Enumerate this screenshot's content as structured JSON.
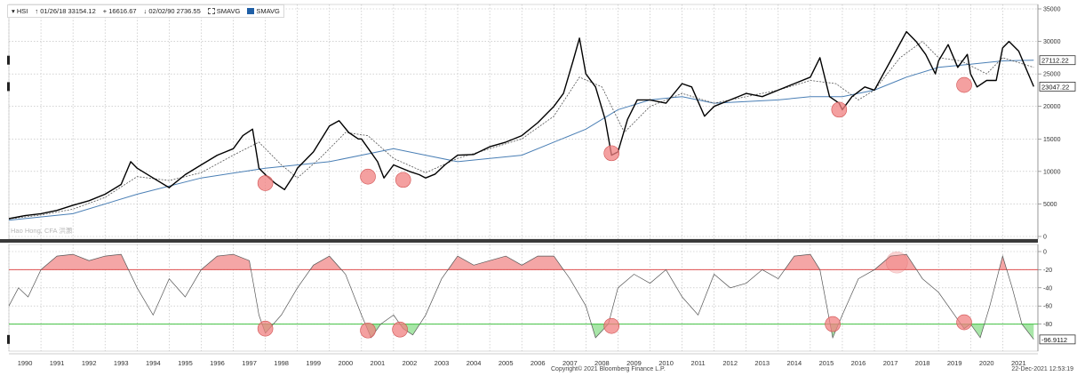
{
  "legend": {
    "ticker": "HSI",
    "high": "01/26/18 33154.12",
    "avg": "16616.67",
    "low": "02/02/90 2736.55",
    "sma1": "SMAVG",
    "sma2": "SMAVG"
  },
  "watermark": "Hao Hong, CFA 洪灝",
  "copyright": "Copyright© 2021 Bloomberg Finance L.P.",
  "timestamp": "22-Dec-2021 12:53:19",
  "colors": {
    "price": "#000000",
    "sma_short": "#555555",
    "sma_long": "#4a7fb5",
    "upper_band": "#e05050",
    "lower_band": "#40c040",
    "over_fill": "#f4a6a6",
    "under_fill": "#a8e6a8",
    "circle": "#f08080"
  },
  "chart_data": [
    {
      "type": "line",
      "panel": "price",
      "ylim": [
        0,
        35000
      ],
      "yticks": [
        0,
        5000,
        10000,
        15000,
        20000,
        25000,
        30000,
        35000
      ],
      "last_labels": [
        {
          "value": 27112.22,
          "text": "27112.22"
        },
        {
          "value": 23047.22,
          "text": "23047.22"
        }
      ],
      "series": [
        {
          "name": "HSI",
          "x": [
            1990,
            1990.5,
            1991,
            1991.5,
            1992,
            1992.5,
            1993,
            1993.5,
            1993.8,
            1994,
            1994.5,
            1995,
            1995.5,
            1996,
            1996.5,
            1997,
            1997.3,
            1997.6,
            1997.8,
            1998,
            1998.3,
            1998.6,
            1998.9,
            1999,
            1999.5,
            2000,
            2000.3,
            2000.6,
            2000.9,
            2001,
            2001.5,
            2001.7,
            2002,
            2002.5,
            2002.8,
            2003,
            2003.3,
            2003.6,
            2004,
            2004.5,
            2005,
            2005.5,
            2006,
            2006.5,
            2007,
            2007.3,
            2007.6,
            2007.8,
            2008,
            2008.3,
            2008.6,
            2008.8,
            2009,
            2009.3,
            2009.6,
            2010,
            2010.5,
            2011,
            2011.3,
            2011.7,
            2012,
            2012.5,
            2013,
            2013.5,
            2014,
            2014.5,
            2015,
            2015.3,
            2015.6,
            2015.9,
            2016,
            2016.3,
            2016.7,
            2017,
            2017.5,
            2018,
            2018.3,
            2018.6,
            2018.9,
            2019,
            2019.3,
            2019.6,
            2019.9,
            2020,
            2020.2,
            2020.5,
            2020.8,
            2021,
            2021.2,
            2021.5,
            2021.8,
            2021.97
          ],
          "values": [
            2737,
            3200,
            3500,
            4000,
            4800,
            5500,
            6500,
            8000,
            11500,
            10500,
            9000,
            7500,
            9500,
            11000,
            12500,
            13500,
            15500,
            16500,
            10500,
            9500,
            8200,
            7200,
            9500,
            10500,
            13000,
            17000,
            17800,
            16000,
            15000,
            15000,
            11500,
            9000,
            11000,
            10000,
            9500,
            9000,
            9600,
            11000,
            12500,
            12600,
            13800,
            14500,
            15500,
            17500,
            20000,
            22000,
            27000,
            30500,
            25000,
            23000,
            18000,
            12500,
            13000,
            18000,
            21000,
            21000,
            20500,
            23500,
            23000,
            18500,
            20000,
            21000,
            22000,
            21500,
            22500,
            23500,
            24500,
            27500,
            21500,
            20500,
            19500,
            21500,
            23000,
            22500,
            27000,
            31500,
            30000,
            28000,
            25000,
            27000,
            29500,
            26000,
            28000,
            25000,
            23000,
            24000,
            24000,
            29000,
            30000,
            28500,
            25000,
            23047
          ]
        },
        {
          "name": "SMAVG",
          "x": [
            1990,
            1991,
            1992,
            1993,
            1994,
            1995,
            1996,
            1997,
            1997.8,
            1998.5,
            1999,
            1999.7,
            2000.5,
            2001.2,
            2002,
            2003,
            2004,
            2005,
            2006,
            2007,
            2007.8,
            2008.5,
            2009.2,
            2010,
            2011,
            2012,
            2013,
            2014,
            2015,
            2015.8,
            2016.5,
            2017,
            2017.8,
            2018.5,
            2019,
            2019.7,
            2020.5,
            2021,
            2021.97
          ],
          "values": [
            2700,
            3300,
            4200,
            6000,
            9200,
            8600,
            9800,
            12500,
            14500,
            11000,
            9000,
            12000,
            16000,
            15500,
            12000,
            9800,
            12000,
            13500,
            15000,
            18500,
            24500,
            23000,
            16000,
            20000,
            22000,
            20500,
            21500,
            22500,
            24000,
            23500,
            21000,
            22500,
            27500,
            30000,
            27500,
            27000,
            25000,
            27500,
            26000
          ]
        },
        {
          "name": "SMAVG",
          "x": [
            1990,
            1992,
            1994,
            1996,
            1998,
            2000,
            2002,
            2003,
            2004,
            2006,
            2008,
            2009,
            2010,
            2011,
            2012,
            2014,
            2015,
            2016,
            2017,
            2018,
            2019,
            2020,
            2021,
            2021.97
          ],
          "values": [
            2500,
            3500,
            6500,
            9000,
            10500,
            11500,
            13500,
            12500,
            11500,
            12500,
            16500,
            19500,
            21000,
            21500,
            20500,
            21000,
            21500,
            21500,
            22500,
            24500,
            26000,
            26500,
            27000,
            27112
          ]
        }
      ],
      "markers": [
        {
          "x": 1998.0,
          "y": 8200
        },
        {
          "x": 2001.2,
          "y": 9200
        },
        {
          "x": 2002.3,
          "y": 8700
        },
        {
          "x": 2008.8,
          "y": 12800
        },
        {
          "x": 2015.9,
          "y": 19500
        },
        {
          "x": 2019.8,
          "y": 23300
        }
      ]
    },
    {
      "type": "line",
      "panel": "oscillator",
      "ylim": [
        -100,
        0
      ],
      "yticks": [
        0,
        -20,
        -40,
        -60,
        -80
      ],
      "bands": {
        "upper": -20,
        "lower": -80
      },
      "last_labels": [
        {
          "value": -96.9112,
          "text": "-96.9112"
        }
      ],
      "series": [
        {
          "name": "Oscillator",
          "x": [
            1990,
            1990.3,
            1990.6,
            1991,
            1991.5,
            1992,
            1992.5,
            1993,
            1993.5,
            1994,
            1994.5,
            1995,
            1995.5,
            1996,
            1996.5,
            1997,
            1997.5,
            1997.8,
            1998,
            1998.5,
            1999,
            1999.5,
            2000,
            2000.5,
            2001,
            2001.3,
            2001.6,
            2002,
            2002.3,
            2002.6,
            2003,
            2003.5,
            2004,
            2004.5,
            2005,
            2005.5,
            2006,
            2006.5,
            2007,
            2007.5,
            2008,
            2008.3,
            2008.7,
            2009,
            2009.5,
            2010,
            2010.5,
            2011,
            2011.5,
            2012,
            2012.5,
            2013,
            2013.5,
            2014,
            2014.5,
            2015,
            2015.3,
            2015.7,
            2016,
            2016.5,
            2017,
            2017.5,
            2018,
            2018.5,
            2019,
            2019.5,
            2019.8,
            2020,
            2020.3,
            2020.6,
            2021,
            2021.3,
            2021.6,
            2021.97
          ],
          "values": [
            -60,
            -40,
            -50,
            -20,
            -5,
            -3,
            -10,
            -5,
            -3,
            -40,
            -70,
            -30,
            -50,
            -20,
            -5,
            -3,
            -10,
            -70,
            -90,
            -70,
            -40,
            -15,
            -5,
            -25,
            -70,
            -95,
            -80,
            -70,
            -85,
            -92,
            -70,
            -30,
            -5,
            -15,
            -10,
            -5,
            -15,
            -5,
            -5,
            -30,
            -60,
            -95,
            -80,
            -40,
            -25,
            -35,
            -20,
            -50,
            -70,
            -25,
            -40,
            -35,
            -20,
            -30,
            -5,
            -3,
            -20,
            -95,
            -70,
            -30,
            -20,
            -5,
            -3,
            -30,
            -45,
            -70,
            -85,
            -80,
            -95,
            -60,
            -5,
            -40,
            -80,
            -96.9
          ]
        }
      ],
      "markers": [
        {
          "x": 1998.0,
          "y": -85
        },
        {
          "x": 2001.2,
          "y": -87
        },
        {
          "x": 2002.2,
          "y": -86
        },
        {
          "x": 2008.8,
          "y": -82
        },
        {
          "x": 2015.7,
          "y": -80
        },
        {
          "x": 2017.7,
          "y": -12,
          "faded": true
        },
        {
          "x": 2019.8,
          "y": -78
        }
      ]
    }
  ],
  "x_axis": {
    "labels": [
      "1990",
      "1991",
      "1992",
      "1993",
      "1994",
      "1995",
      "1996",
      "1997",
      "1998",
      "1999",
      "2000",
      "2001",
      "2002",
      "2003",
      "2004",
      "2005",
      "2006",
      "2007",
      "2008",
      "2009",
      "2010",
      "2011",
      "2012",
      "2013",
      "2014",
      "2015",
      "2016",
      "2017",
      "2018",
      "2019",
      "2020",
      "2021"
    ]
  }
}
